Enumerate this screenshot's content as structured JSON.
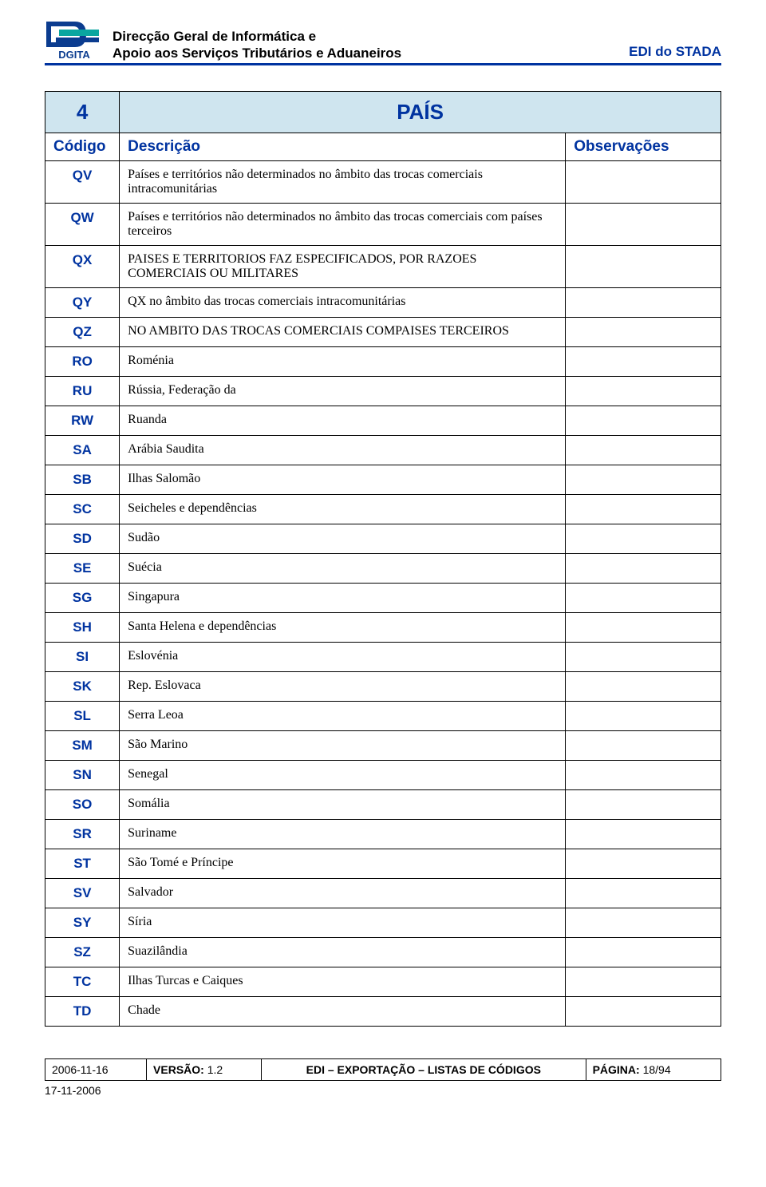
{
  "header": {
    "org_line1": "Direcção Geral de Informática e",
    "org_line2": "Apoio aos Serviços Tributários e Aduaneiros",
    "right": "EDI do STADA"
  },
  "logo": {
    "bg": "#ffffff",
    "blue": "#0b3c8f",
    "teal": "#0aa6a0",
    "text": "DGITA"
  },
  "table_title": {
    "num": "4",
    "text": "PAÍS"
  },
  "columns": {
    "code": "Código",
    "desc": "Descrição",
    "obs": "Observações"
  },
  "rows": [
    {
      "code": "QV",
      "desc": "Países e territórios não determinados no âmbito das trocas comerciais intracomunitárias",
      "obs": ""
    },
    {
      "code": "QW",
      "desc": "Países e territórios não determinados no âmbito das trocas comerciais com países terceiros",
      "obs": ""
    },
    {
      "code": "QX",
      "desc": "PAISES E TERRITORIOS FAZ ESPECIFICADOS, POR RAZOES COMERCIAIS OU MILITARES",
      "obs": ""
    },
    {
      "code": "QY",
      "desc": "QX no âmbito das trocas comerciais intracomunitárias",
      "obs": ""
    },
    {
      "code": "QZ",
      "desc": "NO AMBITO DAS TROCAS COMERCIAIS COMPAISES TERCEIROS",
      "obs": ""
    },
    {
      "code": "RO",
      "desc": "Roménia",
      "obs": ""
    },
    {
      "code": "RU",
      "desc": "Rússia, Federação da",
      "obs": ""
    },
    {
      "code": "RW",
      "desc": "Ruanda",
      "obs": ""
    },
    {
      "code": "SA",
      "desc": "Arábia Saudita",
      "obs": ""
    },
    {
      "code": "SB",
      "desc": "Ilhas Salomão",
      "obs": ""
    },
    {
      "code": "SC",
      "desc": "Seicheles e dependências",
      "obs": ""
    },
    {
      "code": "SD",
      "desc": "Sudão",
      "obs": ""
    },
    {
      "code": "SE",
      "desc": "Suécia",
      "obs": ""
    },
    {
      "code": "SG",
      "desc": "Singapura",
      "obs": ""
    },
    {
      "code": "SH",
      "desc": "Santa Helena e dependências",
      "obs": ""
    },
    {
      "code": "SI",
      "desc": "Eslovénia",
      "obs": ""
    },
    {
      "code": "SK",
      "desc": "Rep. Eslovaca",
      "obs": ""
    },
    {
      "code": "SL",
      "desc": "Serra Leoa",
      "obs": ""
    },
    {
      "code": "SM",
      "desc": "São Marino",
      "obs": ""
    },
    {
      "code": "SN",
      "desc": "Senegal",
      "obs": ""
    },
    {
      "code": "SO",
      "desc": "Somália",
      "obs": ""
    },
    {
      "code": "SR",
      "desc": "Suriname",
      "obs": ""
    },
    {
      "code": "ST",
      "desc": "São Tomé e Príncipe",
      "obs": ""
    },
    {
      "code": "SV",
      "desc": "Salvador",
      "obs": ""
    },
    {
      "code": "SY",
      "desc": "Síria",
      "obs": ""
    },
    {
      "code": "SZ",
      "desc": "Suazilândia",
      "obs": ""
    },
    {
      "code": "TC",
      "desc": "Ilhas Turcas e Caiques",
      "obs": ""
    },
    {
      "code": "TD",
      "desc": "Chade",
      "obs": ""
    }
  ],
  "footer": {
    "date": "2006-11-16",
    "version_label": "VERSÃO:",
    "version_value": "1.2",
    "center": "EDI – EXPORTAÇÃO – LISTAS DE CÓDIGOS",
    "page_label": "PÁGINA:",
    "page_value": "18/94",
    "print_date": "17-11-2006"
  }
}
